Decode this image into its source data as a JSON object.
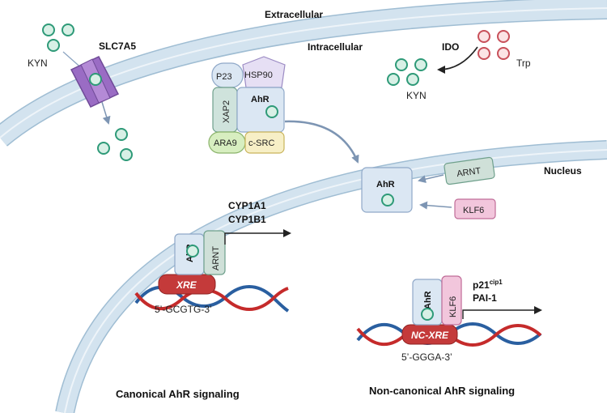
{
  "compartments": {
    "extracellular": "Extracellular",
    "intracellular": "Intracellular",
    "nucleus": "Nucleus"
  },
  "transporter": {
    "label": "SLC7A5",
    "substrate": "KYN"
  },
  "ido_reaction": {
    "enzyme": "IDO",
    "substrate": "Trp",
    "product": "KYN"
  },
  "cytosolic_complex": {
    "p23": "P23",
    "hsp90": "HSP90",
    "xap2": "XAP2",
    "ahr": "AhR",
    "ara9": "ARA9",
    "csrc": "c-SRC"
  },
  "nuclear_ahr": {
    "ahr": "AhR",
    "arnt": "ARNT",
    "klf6": "KLF6"
  },
  "canonical": {
    "ahr": "AhR",
    "partner": "ARNT",
    "element": "XRE",
    "sequence": "5’-GCGTG-3’",
    "genes": [
      "CYP1A1",
      "CYP1B1"
    ],
    "caption": "Canonical AhR signaling"
  },
  "noncanonical": {
    "ahr": "AhR",
    "partner": "KLF6",
    "element": "NC-XRE",
    "sequence": "5’-GGGA-3’",
    "gene1_base": "p21",
    "gene1_sup": "cip1",
    "gene2": "PAI-1",
    "caption": "Non-canonical AhR signaling"
  },
  "colors": {
    "membrane": "#d3e3ef",
    "membrane_edge": "#9fbdd3",
    "kyn": "#2e9a78",
    "trp": "#c8505a",
    "transporter": "#9a6cc4",
    "ahr_box": "#dbe7f3",
    "arnt": "#cfe0d8",
    "klf6": "#f2c6dc",
    "xre": "#c43a3a",
    "dna_red": "#c52b2b",
    "dna_blue": "#2a5fa0"
  }
}
